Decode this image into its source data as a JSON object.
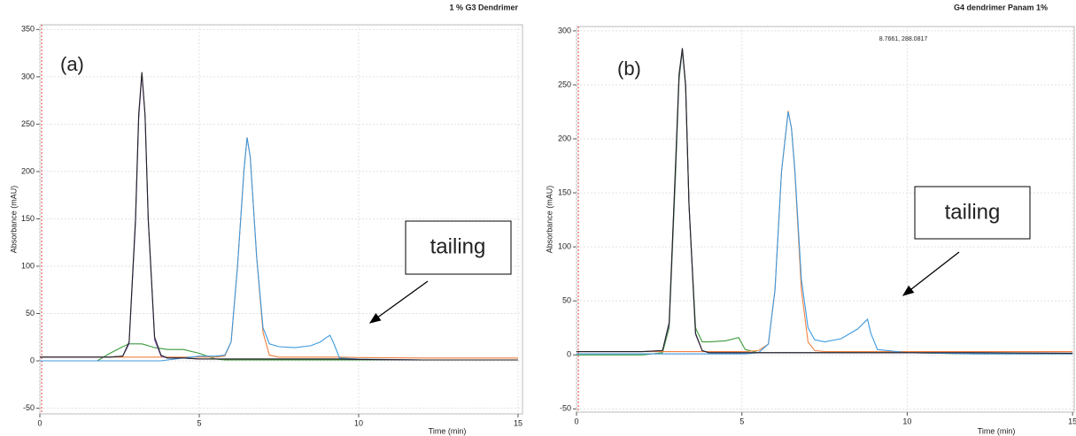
{
  "chart_data": [
    {
      "type": "line",
      "title": "1 % G3 Dendrimer",
      "x_label": "Time (min)",
      "y_label": "Absorbance (mAU)",
      "annotations": [
        "(a)",
        "tailing"
      ],
      "xlim": [
        0,
        15.14
      ],
      "ylim": [
        -56,
        355
      ],
      "xticks": [
        0,
        5,
        10,
        15
      ],
      "yticks": [
        -50,
        0,
        50,
        100,
        150,
        200,
        250,
        300,
        350
      ],
      "grid": true,
      "x": [
        0,
        1,
        1.8,
        2.2,
        2.6,
        2.8,
        3.0,
        3.1,
        3.2,
        3.3,
        3.4,
        3.6,
        3.8,
        4.0,
        4.5,
        5.0,
        5.5,
        5.8,
        6.0,
        6.2,
        6.4,
        6.5,
        6.6,
        6.8,
        7.0,
        7.2,
        7.5,
        8.0,
        8.5,
        8.8,
        9.0,
        9.1,
        9.2,
        9.4,
        10,
        12,
        15
      ],
      "series": [
        {
          "color": "#3a9a3a",
          "values": [
            0,
            0,
            0,
            8,
            15,
            18,
            18,
            18,
            18,
            17,
            16,
            14,
            13,
            12,
            12,
            8,
            2,
            1,
            1,
            1,
            1,
            1,
            1,
            1,
            1,
            1,
            1,
            1,
            1,
            1,
            1,
            1,
            1,
            1,
            1,
            1,
            1
          ]
        },
        {
          "color": "#f08040",
          "values": [
            4,
            4,
            4,
            4,
            4,
            4,
            4,
            4,
            4,
            4,
            4,
            4,
            4,
            4,
            4,
            4,
            4,
            5,
            20,
            100,
            200,
            236,
            215,
            110,
            30,
            6,
            4,
            4,
            4,
            4,
            4,
            4,
            4,
            4,
            3.5,
            3,
            3
          ]
        },
        {
          "color": "#3c9ae0",
          "values": [
            0,
            0,
            0,
            0,
            0,
            0,
            0,
            0,
            0,
            0,
            0,
            0,
            0,
            1,
            3,
            5,
            5,
            6,
            20,
            100,
            200,
            236,
            215,
            110,
            35,
            18,
            15,
            14,
            16,
            20,
            25,
            27,
            20,
            3,
            2,
            1,
            1
          ]
        },
        {
          "color": "#8a5cc9",
          "values": [
            4,
            4,
            4,
            4,
            5,
            18,
            145,
            255,
            303,
            258,
            148,
            22,
            5,
            3,
            3,
            2,
            2,
            2,
            2,
            2,
            2,
            2,
            2,
            2,
            2,
            2,
            2,
            2,
            2,
            2,
            2,
            2,
            2,
            2,
            1.5,
            1,
            1
          ]
        },
        {
          "color": "#222222",
          "values": [
            4,
            4,
            4,
            4,
            5,
            20,
            150,
            260,
            305,
            260,
            150,
            25,
            6,
            3,
            3,
            2,
            2,
            2,
            2,
            2,
            2,
            2,
            2,
            2,
            2,
            2,
            2,
            2,
            2,
            2,
            2,
            2,
            2,
            2,
            1.5,
            1,
            1
          ]
        }
      ]
    },
    {
      "type": "line",
      "title": "G4 dendrimer Panam 1%",
      "x_label": "Time (min)",
      "y_label": "Absorbance (mAU)",
      "annotations": [
        "(b)",
        "tailing",
        "8.7661, 288.0817"
      ],
      "xlim": [
        0,
        15.05
      ],
      "ylim": [
        -53,
        304
      ],
      "xticks": [
        0,
        5,
        10,
        15
      ],
      "yticks": [
        -50,
        0,
        50,
        100,
        150,
        200,
        250,
        300
      ],
      "grid": true,
      "x": [
        0,
        1,
        2,
        2.6,
        2.8,
        3.0,
        3.1,
        3.2,
        3.3,
        3.4,
        3.6,
        3.8,
        4.0,
        4.5,
        4.9,
        5.1,
        5.5,
        5.8,
        6.0,
        6.2,
        6.4,
        6.5,
        6.6,
        6.8,
        7.0,
        7.2,
        7.5,
        8.0,
        8.5,
        8.8,
        8.9,
        9.1,
        10,
        12,
        15
      ],
      "series": [
        {
          "color": "#3a9a3a",
          "values": [
            0,
            0,
            0,
            2,
            25,
            170,
            255,
            282,
            248,
            138,
            25,
            12,
            12,
            13,
            16,
            5,
            2,
            2,
            2,
            2,
            2,
            2,
            2,
            2,
            2,
            2,
            2,
            2,
            2,
            2,
            2,
            2,
            2,
            1,
            1
          ]
        },
        {
          "color": "#f08040",
          "values": [
            3,
            3,
            3,
            3,
            3,
            3,
            3,
            3,
            3,
            3,
            3,
            3,
            3,
            3,
            3,
            3,
            4,
            10,
            60,
            170,
            226,
            210,
            170,
            60,
            12,
            4,
            3,
            3,
            3,
            3,
            3,
            3,
            3,
            3,
            3
          ]
        },
        {
          "color": "#3c9ae0",
          "values": [
            1,
            1,
            1,
            1,
            1,
            1,
            1,
            1,
            1,
            1,
            1,
            1,
            1,
            1,
            1,
            1,
            2,
            10,
            60,
            170,
            225,
            210,
            172,
            70,
            25,
            14,
            12,
            15,
            24,
            33,
            20,
            5,
            2,
            1,
            1
          ]
        },
        {
          "color": "#8a5cc9",
          "values": [
            3,
            3,
            3,
            4,
            28,
            178,
            258,
            283,
            249,
            139,
            19,
            4,
            2,
            2,
            2,
            2,
            2,
            2,
            2,
            2,
            2,
            2,
            2,
            2,
            2,
            2,
            2,
            2,
            2,
            2,
            2,
            2,
            2,
            2,
            1.5
          ]
        },
        {
          "color": "#222222",
          "values": [
            3,
            3,
            3,
            4,
            30,
            180,
            260,
            284,
            250,
            140,
            20,
            4,
            2,
            2,
            2,
            2,
            2,
            2,
            2,
            2,
            2,
            2,
            2,
            2,
            2,
            2,
            2,
            2,
            2,
            2,
            2,
            2,
            2,
            2,
            1.5
          ]
        }
      ]
    }
  ]
}
